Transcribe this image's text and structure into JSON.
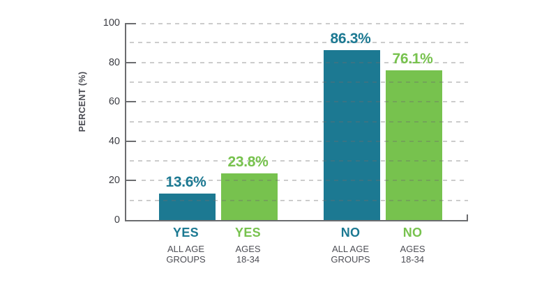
{
  "chart_data": {
    "type": "bar",
    "title": "",
    "xlabel": "",
    "ylabel": "PERCENT (%)",
    "ylim": [
      0,
      100
    ],
    "yticks": [
      0,
      20,
      40,
      60,
      80,
      100
    ],
    "grid": true,
    "grid_interval": 10,
    "grid_style": "dashed",
    "legend_position": "none",
    "categories": [
      "YES ALL AGE GROUPS",
      "YES AGES 18-34",
      "NO ALL AGE GROUPS",
      "NO AGES 18-34"
    ],
    "bars": [
      {
        "label": "YES",
        "sublabel_lines": [
          "ALL AGE",
          "GROUPS"
        ],
        "value": 13.6,
        "value_display": "13.6%",
        "color_key": "teal"
      },
      {
        "label": "YES",
        "sublabel_lines": [
          "AGES",
          "18-34"
        ],
        "value": 23.8,
        "value_display": "23.8%",
        "color_key": "green"
      },
      {
        "label": "NO",
        "sublabel_lines": [
          "ALL AGE",
          "GROUPS"
        ],
        "value": 86.3,
        "value_display": "86.3%",
        "color_key": "teal"
      },
      {
        "label": "NO",
        "sublabel_lines": [
          "AGES",
          "18-34"
        ],
        "value": 76.1,
        "value_display": "76.1%",
        "color_key": "green"
      }
    ]
  },
  "colors": {
    "teal": "#1C7992",
    "green": "#77C24E",
    "axis": "#6B6C6F",
    "grid": "rgba(108,108,108,0.35)",
    "tick_text": "#3C3D43",
    "sublabel_text": "#4D4E55"
  }
}
